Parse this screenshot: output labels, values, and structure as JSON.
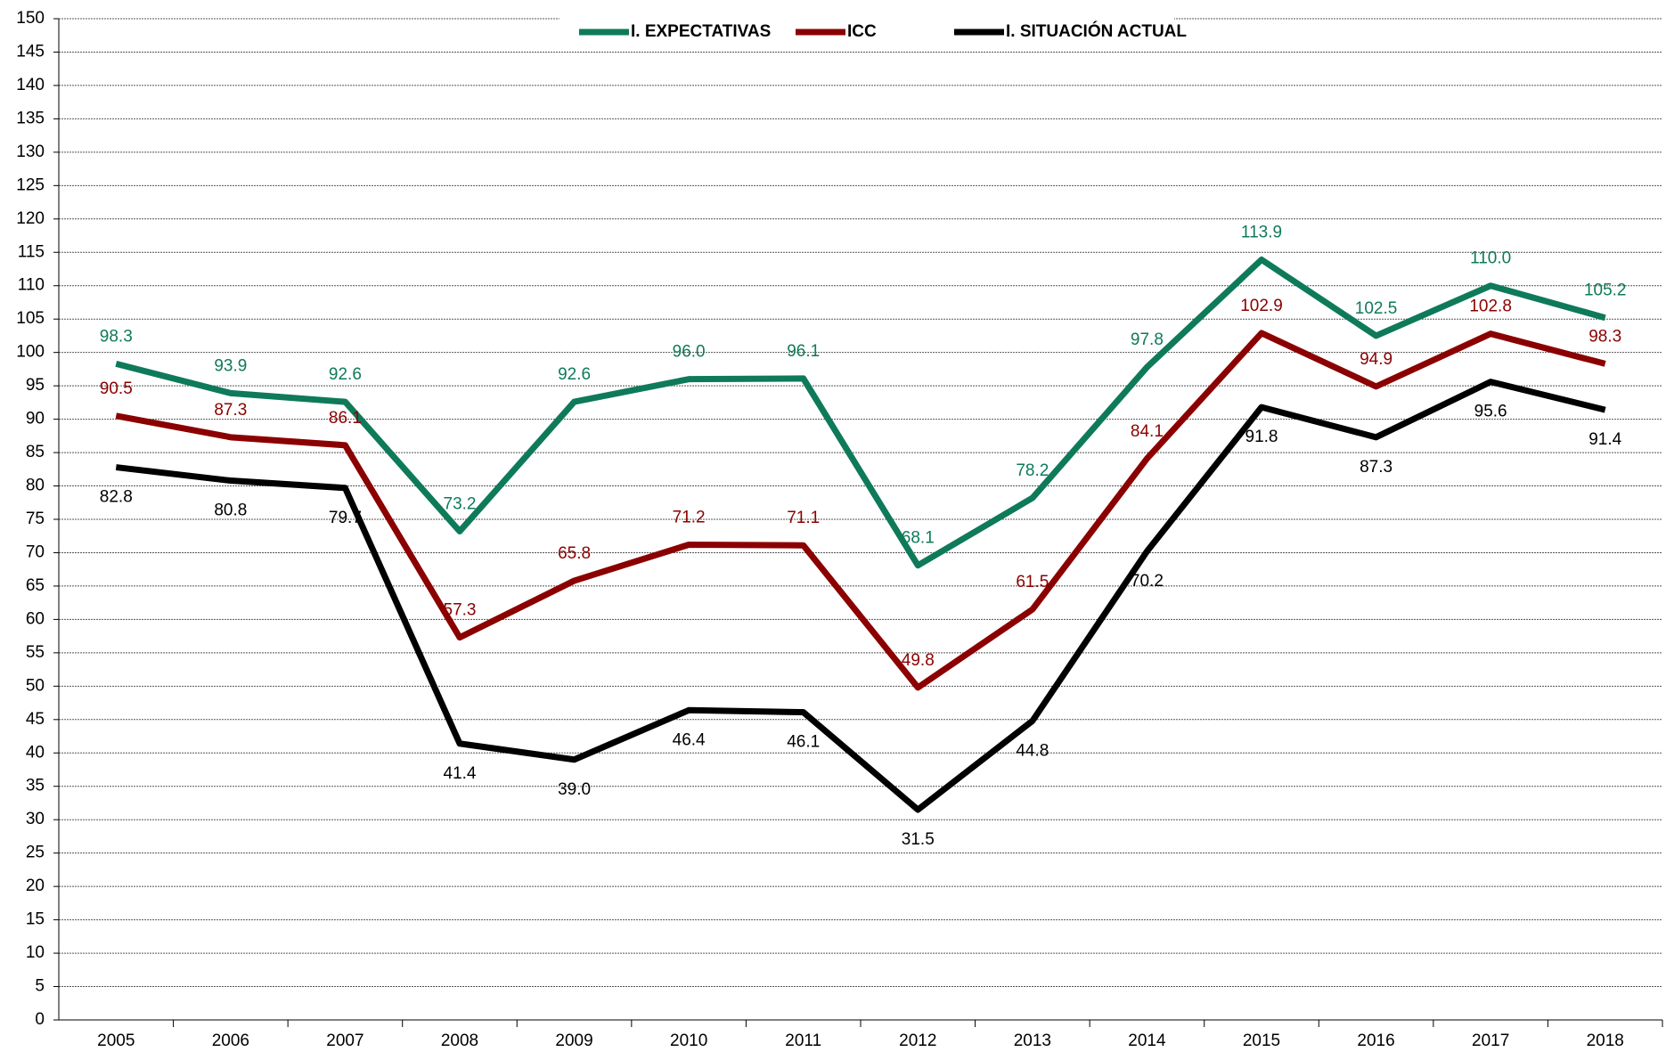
{
  "chart_data": {
    "type": "line",
    "categories": [
      "2005",
      "2006",
      "2007",
      "2008",
      "2009",
      "2010",
      "2011",
      "2012",
      "2013",
      "2014",
      "2015",
      "2016",
      "2017",
      "2018"
    ],
    "series": [
      {
        "name": "I. EXPECTATIVAS",
        "color": "#0e7a5a",
        "values": [
          98.3,
          93.9,
          92.6,
          73.2,
          92.6,
          96.0,
          96.1,
          68.1,
          78.2,
          97.8,
          113.9,
          102.5,
          110.0,
          105.2
        ],
        "value_labels": [
          "98.3",
          "93.9",
          "92.6",
          "73.2",
          "92.6",
          "96.0",
          "96.1",
          "68.1",
          "78.2",
          "97.8",
          "113.9",
          "102.5",
          "110.0",
          "105.2"
        ]
      },
      {
        "name": "ICC",
        "color": "#8b0000",
        "values": [
          90.5,
          87.3,
          86.1,
          57.3,
          65.8,
          71.2,
          71.1,
          49.8,
          61.5,
          84.1,
          102.9,
          94.9,
          102.8,
          98.3
        ],
        "value_labels": [
          "90.5",
          "87.3",
          "86.1",
          "57.3",
          "65.8",
          "71.2",
          "71.1",
          "49.8",
          "61.5",
          "84.1",
          "102.9",
          "94.9",
          "102.8",
          "98.3"
        ]
      },
      {
        "name": "I. SITUACIÓN ACTUAL",
        "color": "#000000",
        "values": [
          82.8,
          80.8,
          79.7,
          41.4,
          39.0,
          46.4,
          46.1,
          31.5,
          44.8,
          70.2,
          91.8,
          87.3,
          95.6,
          91.4
        ],
        "value_labels": [
          "82.8",
          "80.8",
          "79.7",
          "41.4",
          "39.0",
          "46.4",
          "46.1",
          "31.5",
          "44.8",
          "70.2",
          "91.8",
          "87.3",
          "95.6",
          "91.4"
        ]
      }
    ],
    "ylim": [
      0,
      150
    ],
    "yticks": [
      0,
      5,
      10,
      15,
      20,
      25,
      30,
      35,
      40,
      45,
      50,
      55,
      60,
      65,
      70,
      75,
      80,
      85,
      90,
      95,
      100,
      105,
      110,
      115,
      120,
      125,
      130,
      135,
      140,
      145,
      150
    ],
    "grid": true,
    "legend": "top"
  }
}
